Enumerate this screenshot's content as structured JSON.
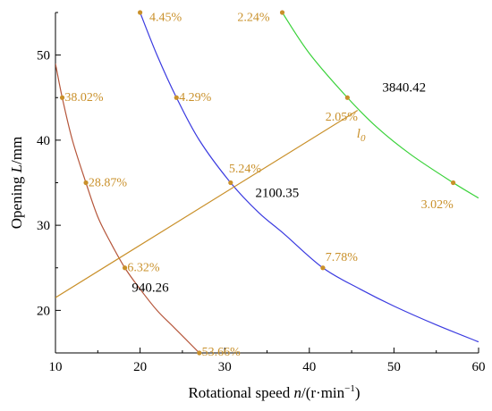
{
  "chart_data": {
    "type": "line",
    "xlabel_parts": [
      "Rotational speed ",
      "n",
      "/(r·min",
      "−1",
      ")"
    ],
    "ylabel_parts": [
      "Opening ",
      "L",
      "/mm"
    ],
    "xlim": [
      10,
      60
    ],
    "ylim": [
      15,
      55
    ],
    "xticks": [
      10,
      20,
      30,
      40,
      50,
      60
    ],
    "yticks": [
      20,
      30,
      40,
      50
    ],
    "grid": false,
    "colors": {
      "curve_red": "#b5553a",
      "curve_blue": "#3a3ae0",
      "curve_green": "#3ad23a",
      "l0_line": "#c9902a",
      "markers": "#c9902a",
      "pct_text": "#c9902a",
      "speed_text": "#000000"
    },
    "series": [
      {
        "color_key": "curve_red",
        "x": [
          10,
          10.8,
          12,
          13.6,
          15,
          16.5,
          18.2,
          20,
          22,
          24,
          27
        ],
        "y": [
          49,
          45,
          40,
          35,
          31,
          28,
          25,
          22.5,
          20,
          18,
          15
        ]
      },
      {
        "color_key": "curve_blue",
        "x": [
          20,
          22,
          24.3,
          27,
          30.7,
          34,
          37,
          41.6,
          46,
          50,
          55,
          60
        ],
        "y": [
          55,
          50,
          45,
          40,
          35,
          31.5,
          29,
          25,
          22.5,
          20.5,
          18.3,
          16.3
        ]
      },
      {
        "color_key": "curve_green",
        "x": [
          36.8,
          40,
          44.5,
          48,
          52,
          57,
          60
        ],
        "y": [
          55,
          50.2,
          45,
          41.5,
          38.3,
          35,
          33.2
        ]
      },
      {
        "color_key": "l0_line",
        "x": [
          10,
          45.7
        ],
        "y": [
          21.5,
          43.5
        ]
      }
    ],
    "markers": [
      {
        "x": 10.8,
        "y": 45
      },
      {
        "x": 13.6,
        "y": 35
      },
      {
        "x": 18.2,
        "y": 25
      },
      {
        "x": 27,
        "y": 15
      },
      {
        "x": 20,
        "y": 55
      },
      {
        "x": 24.3,
        "y": 45
      },
      {
        "x": 30.7,
        "y": 35
      },
      {
        "x": 41.6,
        "y": 25
      },
      {
        "x": 36.8,
        "y": 55
      },
      {
        "x": 44.5,
        "y": 45
      },
      {
        "x": 57,
        "y": 35
      }
    ],
    "percent_labels": [
      {
        "text": "38.02%",
        "x": 11.1,
        "y": 44.6
      },
      {
        "text": "28.87%",
        "x": 13.9,
        "y": 34.6
      },
      {
        "text": "6.32%",
        "x": 18.5,
        "y": 24.6
      },
      {
        "text": "53.66%",
        "x": 27.3,
        "y": 14.7
      },
      {
        "text": "4.45%",
        "x": 21.1,
        "y": 54.0
      },
      {
        "text": "4.29%",
        "x": 24.6,
        "y": 44.6
      },
      {
        "text": "5.24%",
        "x": 30.5,
        "y": 36.2
      },
      {
        "text": "7.78%",
        "x": 41.9,
        "y": 25.8
      },
      {
        "text": "2.24%",
        "x": 31.5,
        "y": 54.0
      },
      {
        "text": "2.05%",
        "x": 41.9,
        "y": 42.3
      },
      {
        "text": "3.02%",
        "x": 53.2,
        "y": 32.0
      }
    ],
    "speed_labels": [
      {
        "text": "940.26",
        "x": 21.2,
        "y": 22.2
      },
      {
        "text": "2100.35",
        "x": 36.2,
        "y": 33.3
      },
      {
        "text": "3840.42",
        "x": 51.2,
        "y": 45.7
      }
    ],
    "l0_label": {
      "main": "l",
      "sub": "0",
      "x": 45.6,
      "y": 40.3
    }
  }
}
